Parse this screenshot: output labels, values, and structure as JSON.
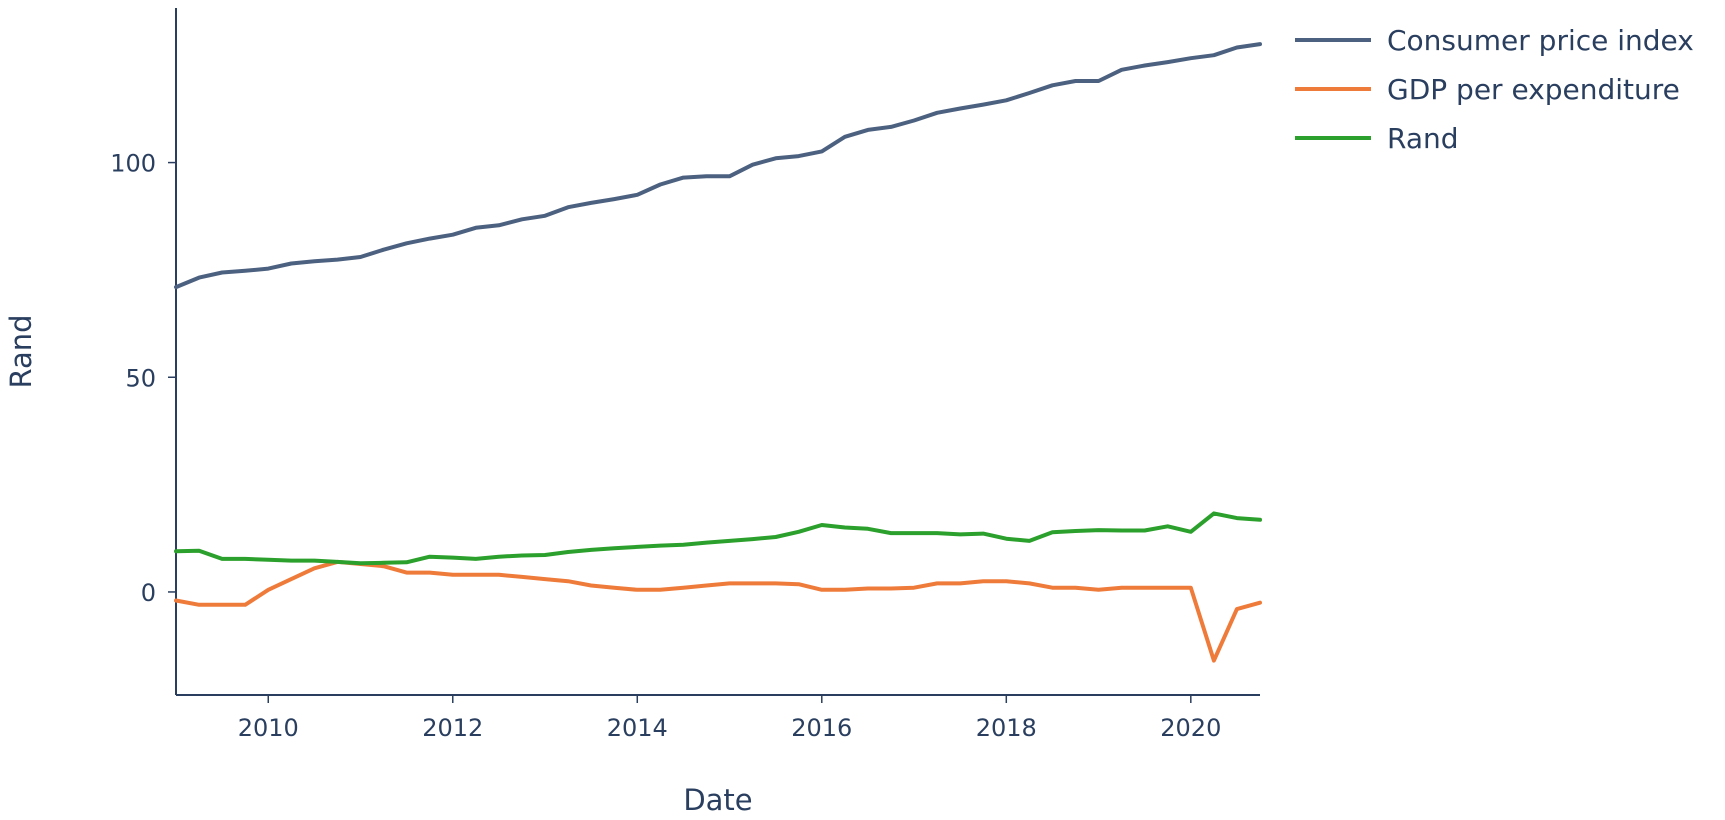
{
  "chart_data": {
    "type": "line",
    "xlabel": "Date",
    "ylabel": "Rand",
    "xlim": [
      2009.0,
      2020.75
    ],
    "ylim": [
      -24,
      136
    ],
    "x_ticks": [
      2010,
      2012,
      2014,
      2016,
      2018,
      2020
    ],
    "y_ticks": [
      0,
      50,
      100
    ],
    "grid": false,
    "legend_position": "top-right",
    "x": [
      2009.0,
      2009.25,
      2009.5,
      2009.75,
      2010.0,
      2010.25,
      2010.5,
      2010.75,
      2011.0,
      2011.25,
      2011.5,
      2011.75,
      2012.0,
      2012.25,
      2012.5,
      2012.75,
      2013.0,
      2013.25,
      2013.5,
      2013.75,
      2014.0,
      2014.25,
      2014.5,
      2014.75,
      2015.0,
      2015.25,
      2015.5,
      2015.75,
      2016.0,
      2016.25,
      2016.5,
      2016.75,
      2017.0,
      2017.25,
      2017.5,
      2017.75,
      2018.0,
      2018.25,
      2018.5,
      2018.75,
      2019.0,
      2019.25,
      2019.5,
      2019.75,
      2020.0,
      2020.25,
      2020.5,
      2020.75
    ],
    "series": [
      {
        "name": "Consumer price index",
        "color": "#4c6180",
        "values": [
          71.0,
          73.2,
          74.4,
          74.8,
          75.3,
          76.5,
          77.0,
          77.4,
          78.0,
          79.7,
          81.2,
          82.3,
          83.2,
          84.8,
          85.4,
          86.8,
          87.6,
          89.6,
          90.6,
          91.5,
          92.5,
          94.9,
          96.5,
          96.8,
          96.8,
          99.5,
          101.0,
          101.5,
          102.6,
          106.0,
          107.6,
          108.3,
          109.8,
          111.6,
          112.6,
          113.5,
          114.5,
          116.2,
          118.0,
          119.0,
          119.0,
          121.6,
          122.6,
          123.4,
          124.3,
          125.0,
          126.8,
          127.6
        ]
      },
      {
        "name": "GDP per expenditure",
        "color": "#ef7b3b",
        "values": [
          -2.0,
          -3.0,
          -3.0,
          -3.0,
          0.5,
          3.0,
          5.5,
          7.0,
          6.5,
          6.0,
          4.5,
          4.5,
          4.0,
          4.0,
          4.0,
          3.5,
          3.0,
          2.5,
          1.5,
          1.0,
          0.5,
          0.5,
          1.0,
          1.5,
          2.0,
          2.0,
          2.0,
          1.8,
          0.5,
          0.5,
          0.8,
          0.8,
          1.0,
          2.0,
          2.0,
          2.5,
          2.5,
          2.0,
          1.0,
          1.0,
          0.5,
          1.0,
          1.0,
          1.0,
          1.0,
          -16.0,
          -4.0,
          -2.5
        ]
      },
      {
        "name": "Rand",
        "color": "#2ca02c",
        "values": [
          9.5,
          9.6,
          7.7,
          7.7,
          7.5,
          7.3,
          7.3,
          7.0,
          6.7,
          6.8,
          6.9,
          8.2,
          8.0,
          7.7,
          8.2,
          8.5,
          8.6,
          9.3,
          9.8,
          10.2,
          10.5,
          10.8,
          11.0,
          11.5,
          11.9,
          12.3,
          12.8,
          14.0,
          15.6,
          15.0,
          14.7,
          13.7,
          13.7,
          13.7,
          13.4,
          13.6,
          12.4,
          11.9,
          13.9,
          14.2,
          14.4,
          14.3,
          14.3,
          15.3,
          14.0,
          18.3,
          17.2,
          16.8
        ]
      }
    ]
  }
}
